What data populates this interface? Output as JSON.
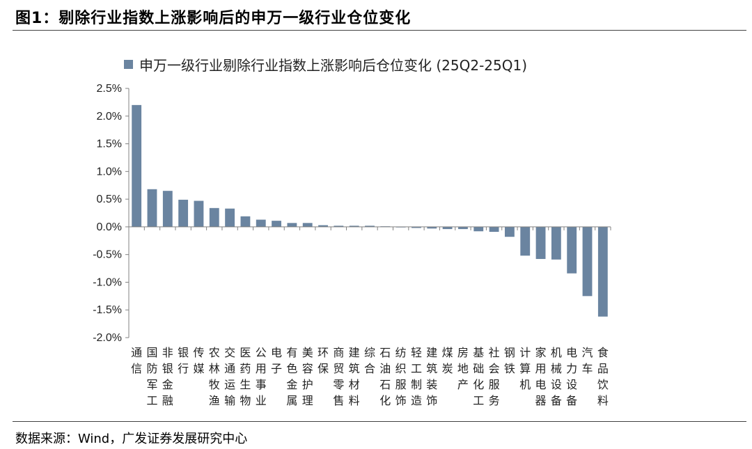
{
  "figure": {
    "title": "图1：剔除行业指数上涨影响后的申万一级行业仓位变化",
    "source": "数据来源：Wind，广发证券发展研究中心"
  },
  "chart_data": {
    "type": "bar",
    "legend": {
      "label": "申万一级行业剔除行业指数上涨影响后仓位变化 (25Q2-25Q1)",
      "position": "top"
    },
    "color": "#6a84a0",
    "ylim": [
      -2.0,
      2.5
    ],
    "yticks": [
      "2.5%",
      "2.0%",
      "1.5%",
      "1.0%",
      "0.5%",
      "0.0%",
      "-0.5%",
      "-1.0%",
      "-1.5%",
      "-2.0%"
    ],
    "ytick_values": [
      2.5,
      2.0,
      1.5,
      1.0,
      0.5,
      0.0,
      -0.5,
      -1.0,
      -1.5,
      -2.0
    ],
    "grid": false,
    "categories": [
      "通信",
      "国防军工",
      "非银金融",
      "银行",
      "传媒",
      "农林牧渔",
      "交通运输",
      "医药生物",
      "公用事业",
      "电子",
      "有色金属",
      "美容护理",
      "环保",
      "商贸零售",
      "建筑材料",
      "综合",
      "石油石化",
      "纺织服饰",
      "轻工制造",
      "建筑装饰",
      "煤炭",
      "房地产",
      "基础化工",
      "社会服务",
      "钢铁",
      "计算机",
      "家用电器",
      "机械设备",
      "电力设备",
      "汽车",
      "食品饮料"
    ],
    "values": [
      2.2,
      0.68,
      0.65,
      0.49,
      0.47,
      0.34,
      0.33,
      0.19,
      0.13,
      0.11,
      0.07,
      0.07,
      0.03,
      0.02,
      0.02,
      0.02,
      0.01,
      -0.01,
      -0.02,
      -0.03,
      -0.04,
      -0.04,
      -0.08,
      -0.09,
      -0.18,
      -0.52,
      -0.58,
      -0.59,
      -0.84,
      -1.25,
      -1.62
    ]
  }
}
